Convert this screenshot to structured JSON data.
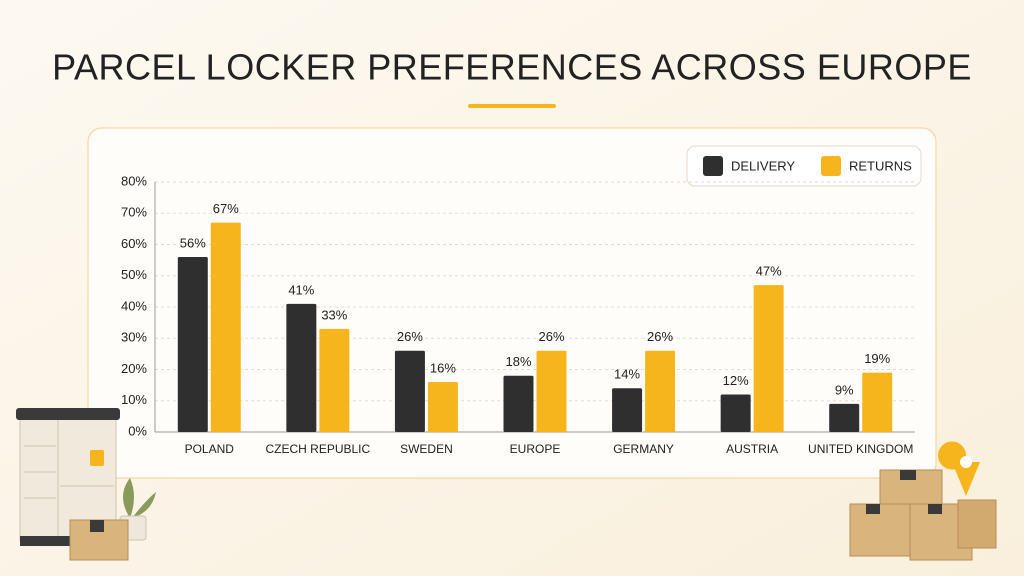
{
  "chart_data": {
    "type": "bar",
    "title": "PARCEL LOCKER PREFERENCES ACROSS EUROPE",
    "categories": [
      "POLAND",
      "CZECH REPUBLIC",
      "SWEDEN",
      "EUROPE",
      "GERMANY",
      "AUSTRIA",
      "UNITED KINGDOM"
    ],
    "series": [
      {
        "name": "DELIVERY",
        "color": "#2f2f2f",
        "values": [
          56,
          41,
          26,
          18,
          14,
          12,
          9
        ],
        "value_labels": [
          "56%",
          "41%",
          "26%",
          "18%",
          "14%",
          "12%",
          "9%"
        ]
      },
      {
        "name": "RETURNS",
        "color": "#f6b51c",
        "values": [
          67,
          33,
          16,
          26,
          26,
          47,
          19
        ],
        "value_labels": [
          "67%",
          "33%",
          "16%",
          "26%",
          "26%",
          "47%",
          "19%"
        ]
      }
    ],
    "ylim": [
      0,
      80
    ],
    "yticks": [
      {
        "value": 0,
        "label": "0%"
      },
      {
        "value": 10,
        "label": "10%"
      },
      {
        "value": 20,
        "label": "20%"
      },
      {
        "value": 30,
        "label": "30%"
      },
      {
        "value": 40,
        "label": "40%"
      },
      {
        "value": 50,
        "label": "50%"
      },
      {
        "value": 60,
        "label": "60%"
      },
      {
        "value": 70,
        "label": "70%"
      },
      {
        "value": 80,
        "label": "80%"
      }
    ],
    "grid": true,
    "legend": "top-right"
  }
}
